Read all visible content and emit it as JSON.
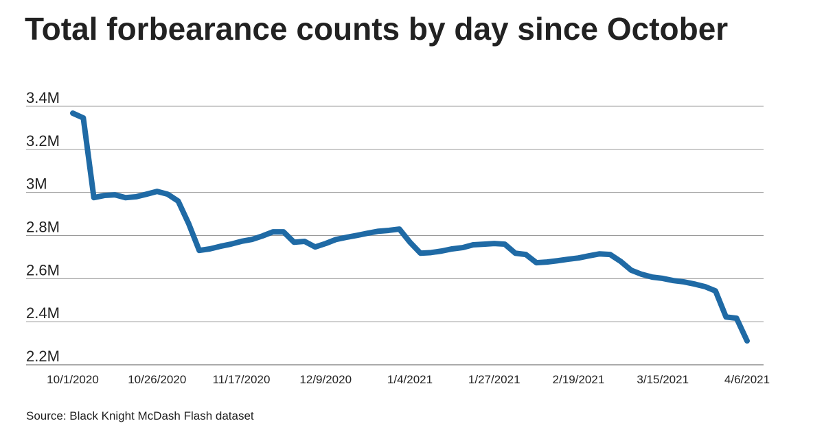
{
  "chart_data": {
    "type": "line",
    "title": "Total forbearance counts by day since October",
    "source": "Source: Black Knight McDash Flash dataset",
    "categories": [
      "10/1/2020",
      null,
      null,
      null,
      null,
      null,
      null,
      null,
      "10/26/2020",
      null,
      null,
      null,
      null,
      null,
      null,
      null,
      "11/17/2020",
      null,
      null,
      null,
      null,
      null,
      null,
      null,
      "12/9/2020",
      null,
      null,
      null,
      null,
      null,
      null,
      null,
      "1/4/2021",
      null,
      null,
      null,
      null,
      null,
      null,
      null,
      "1/27/2021",
      null,
      null,
      null,
      null,
      null,
      null,
      null,
      "2/19/2021",
      null,
      null,
      null,
      null,
      null,
      null,
      null,
      "3/15/2021",
      null,
      null,
      null,
      null,
      null,
      null,
      null,
      "4/6/2021"
    ],
    "series": [
      {
        "color": "#1f6aa5",
        "values": [
          3368000,
          3346000,
          2976000,
          2986000,
          2989000,
          2976000,
          2980000,
          2992000,
          3005000,
          2992000,
          2960000,
          2855000,
          2731000,
          2738000,
          2750000,
          2760000,
          2773000,
          2782000,
          2798000,
          2817000,
          2817000,
          2769000,
          2773000,
          2747000,
          2763000,
          2782000,
          2792000,
          2801000,
          2811000,
          2820000,
          2824000,
          2830000,
          2769000,
          2718000,
          2721000,
          2728000,
          2738000,
          2744000,
          2757000,
          2760000,
          2763000,
          2760000,
          2718000,
          2712000,
          2674000,
          2677000,
          2683000,
          2690000,
          2696000,
          2706000,
          2715000,
          2712000,
          2680000,
          2639000,
          2620000,
          2607000,
          2601000,
          2591000,
          2585000,
          2575000,
          2563000,
          2543000,
          2422000,
          2416000,
          2311000
        ]
      }
    ],
    "ylim": [
      2200000,
      3400000
    ],
    "yticks": [
      {
        "value": 2200000,
        "label": "2.2M"
      },
      {
        "value": 2400000,
        "label": "2.4M"
      },
      {
        "value": 2600000,
        "label": "2.6M"
      },
      {
        "value": 2800000,
        "label": "2.8M"
      },
      {
        "value": 3000000,
        "label": "3M"
      },
      {
        "value": 3200000,
        "label": "3.2M"
      },
      {
        "value": 3400000,
        "label": "3.4M"
      }
    ],
    "grid": true
  }
}
